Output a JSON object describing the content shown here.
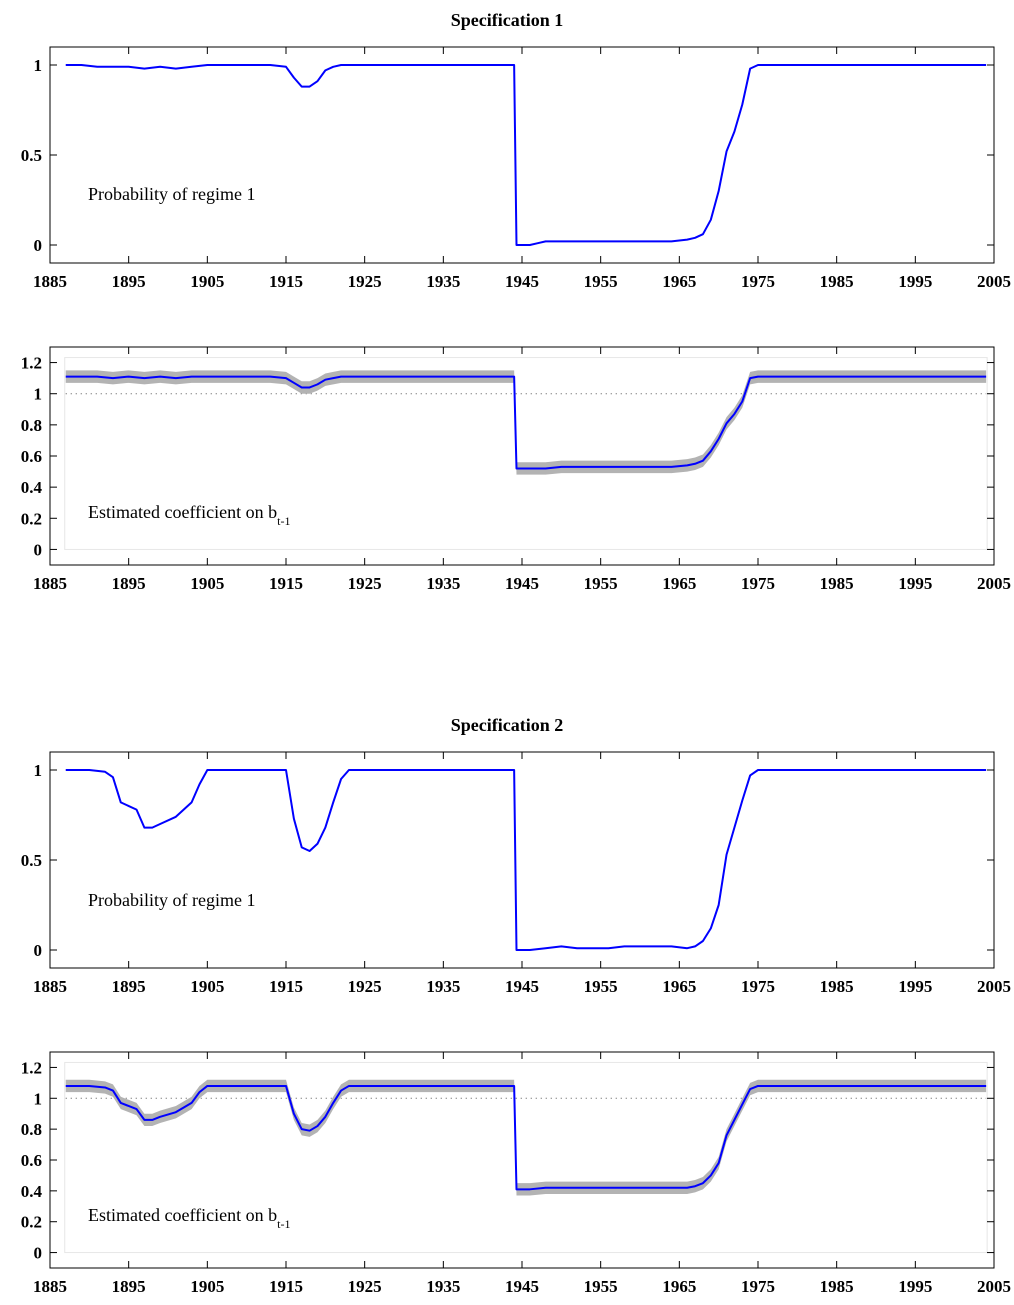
{
  "figure": {
    "titles": [
      "Specification 1",
      "Specification 2"
    ]
  },
  "colors": {
    "line": "#0000ff",
    "band": "#b3b3b3",
    "axis": "#000000",
    "reference": "#555555"
  },
  "chart_data": [
    {
      "type": "line",
      "title": "Specification 1",
      "annotation": "Probability of regime 1",
      "x_ticks": [
        1885,
        1895,
        1905,
        1915,
        1925,
        1935,
        1945,
        1955,
        1965,
        1975,
        1985,
        1995,
        2005
      ],
      "y_ticks": [
        "0",
        "0.5",
        "1"
      ],
      "xlim": [
        1885,
        2005
      ],
      "ylim": [
        -0.1,
        1.1
      ],
      "series": [
        {
          "x": [
            1887,
            1889,
            1891,
            1893,
            1895,
            1897,
            1899,
            1901,
            1903,
            1905,
            1907,
            1913,
            1915,
            1916,
            1917,
            1918,
            1919,
            1920,
            1921,
            1922,
            1923,
            1925,
            1944,
            1944.3,
            1945,
            1946,
            1947,
            1948,
            1950,
            1952,
            1954,
            1956,
            1958,
            1960,
            1962,
            1964,
            1966,
            1967,
            1968,
            1969,
            1970,
            1971,
            1972,
            1973,
            1974,
            1975,
            1976,
            1985,
            2004
          ],
          "y": [
            1.0,
            1.0,
            0.99,
            0.99,
            0.99,
            0.98,
            0.99,
            0.98,
            0.99,
            1.0,
            1.0,
            1.0,
            0.99,
            0.93,
            0.88,
            0.88,
            0.91,
            0.97,
            0.99,
            1.0,
            1.0,
            1.0,
            1.0,
            0.0,
            0.0,
            0.0,
            0.01,
            0.02,
            0.02,
            0.02,
            0.02,
            0.02,
            0.02,
            0.02,
            0.02,
            0.02,
            0.03,
            0.04,
            0.06,
            0.14,
            0.3,
            0.52,
            0.63,
            0.78,
            0.98,
            1.0,
            1.0,
            1.0,
            1.0
          ]
        }
      ]
    },
    {
      "type": "line",
      "title": "",
      "annotation": "Estimated coefficient on b",
      "annotation_subscript": "t-1",
      "x_ticks": [
        1885,
        1895,
        1905,
        1915,
        1925,
        1935,
        1945,
        1955,
        1965,
        1975,
        1985,
        1995,
        2005
      ],
      "y_ticks": [
        "0",
        "0.2",
        "0.4",
        "0.6",
        "0.8",
        "1",
        "1.2"
      ],
      "xlim": [
        1885,
        2005
      ],
      "ylim": [
        -0.1,
        1.3
      ],
      "reference_line": 1,
      "band_halfwidth": 0.04,
      "series": [
        {
          "x": [
            1887,
            1889,
            1891,
            1893,
            1895,
            1897,
            1899,
            1901,
            1903,
            1905,
            1907,
            1913,
            1915,
            1916,
            1917,
            1918,
            1919,
            1920,
            1921,
            1922,
            1923,
            1925,
            1944,
            1944.3,
            1945,
            1946,
            1947,
            1948,
            1950,
            1952,
            1954,
            1956,
            1958,
            1960,
            1962,
            1964,
            1966,
            1967,
            1968,
            1969,
            1970,
            1971,
            1972,
            1973,
            1974,
            1975,
            1976,
            1985,
            2004
          ],
          "y": [
            1.11,
            1.11,
            1.11,
            1.1,
            1.11,
            1.1,
            1.11,
            1.1,
            1.11,
            1.11,
            1.11,
            1.11,
            1.1,
            1.07,
            1.04,
            1.04,
            1.06,
            1.09,
            1.1,
            1.11,
            1.11,
            1.11,
            1.11,
            0.52,
            0.52,
            0.52,
            0.52,
            0.52,
            0.53,
            0.53,
            0.53,
            0.53,
            0.53,
            0.53,
            0.53,
            0.53,
            0.54,
            0.55,
            0.57,
            0.63,
            0.71,
            0.81,
            0.87,
            0.95,
            1.1,
            1.11,
            1.11,
            1.11,
            1.11
          ]
        }
      ]
    },
    {
      "type": "line",
      "title": "Specification 2",
      "annotation": "Probability of regime 1",
      "x_ticks": [
        1885,
        1895,
        1905,
        1915,
        1925,
        1935,
        1945,
        1955,
        1965,
        1975,
        1985,
        1995,
        2005
      ],
      "y_ticks": [
        "0",
        "0.5",
        "1"
      ],
      "xlim": [
        1885,
        2005
      ],
      "ylim": [
        -0.1,
        1.1
      ],
      "series": [
        {
          "x": [
            1887,
            1890,
            1892,
            1893,
            1894,
            1896,
            1897,
            1898,
            1899,
            1901,
            1903,
            1904,
            1905,
            1907,
            1915,
            1916,
            1917,
            1918,
            1919,
            1920,
            1921,
            1922,
            1923,
            1925,
            1944,
            1944.3,
            1946,
            1948,
            1950,
            1952,
            1954,
            1956,
            1958,
            1960,
            1962,
            1964,
            1966,
            1967,
            1968,
            1969,
            1970,
            1971,
            1972,
            1973,
            1974,
            1975,
            1976,
            1985,
            2004
          ],
          "y": [
            1.0,
            1.0,
            0.99,
            0.96,
            0.82,
            0.78,
            0.68,
            0.68,
            0.7,
            0.74,
            0.82,
            0.92,
            1.0,
            1.0,
            1.0,
            0.73,
            0.57,
            0.55,
            0.59,
            0.68,
            0.82,
            0.95,
            1.0,
            1.0,
            1.0,
            0.0,
            0.0,
            0.01,
            0.02,
            0.01,
            0.01,
            0.01,
            0.02,
            0.02,
            0.02,
            0.02,
            0.01,
            0.02,
            0.05,
            0.12,
            0.25,
            0.53,
            0.68,
            0.83,
            0.97,
            1.0,
            1.0,
            1.0,
            1.0
          ]
        }
      ]
    },
    {
      "type": "line",
      "title": "",
      "annotation": "Estimated coefficient on b",
      "annotation_subscript": "t-1",
      "x_ticks": [
        1885,
        1895,
        1905,
        1915,
        1925,
        1935,
        1945,
        1955,
        1965,
        1975,
        1985,
        1995,
        2005
      ],
      "y_ticks": [
        "0",
        "0.2",
        "0.4",
        "0.6",
        "0.8",
        "1",
        "1.2"
      ],
      "xlim": [
        1885,
        2005
      ],
      "ylim": [
        -0.1,
        1.3
      ],
      "reference_line": 1,
      "band_halfwidth": 0.04,
      "series": [
        {
          "x": [
            1887,
            1890,
            1892,
            1893,
            1894,
            1896,
            1897,
            1898,
            1899,
            1901,
            1903,
            1904,
            1905,
            1907,
            1915,
            1916,
            1917,
            1918,
            1919,
            1920,
            1921,
            1922,
            1923,
            1925,
            1944,
            1944.3,
            1946,
            1948,
            1950,
            1952,
            1954,
            1956,
            1958,
            1960,
            1962,
            1964,
            1966,
            1967,
            1968,
            1969,
            1970,
            1971,
            1972,
            1973,
            1974,
            1975,
            1976,
            1985,
            2004
          ],
          "y": [
            1.08,
            1.08,
            1.07,
            1.05,
            0.97,
            0.93,
            0.86,
            0.86,
            0.88,
            0.91,
            0.97,
            1.04,
            1.08,
            1.08,
            1.08,
            0.9,
            0.8,
            0.79,
            0.82,
            0.88,
            0.97,
            1.05,
            1.08,
            1.08,
            1.08,
            0.41,
            0.41,
            0.42,
            0.42,
            0.42,
            0.42,
            0.42,
            0.42,
            0.42,
            0.42,
            0.42,
            0.42,
            0.43,
            0.45,
            0.5,
            0.58,
            0.76,
            0.86,
            0.96,
            1.06,
            1.08,
            1.08,
            1.08,
            1.08
          ]
        }
      ]
    }
  ]
}
